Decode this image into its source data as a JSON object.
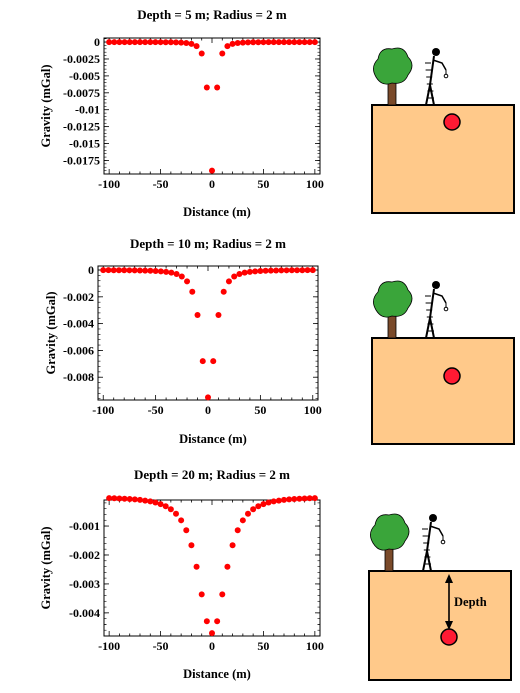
{
  "chart_data": [
    {
      "type": "scatter",
      "title": "Depth = 5 m; Radius = 2 m",
      "xlabel": "Distance (m)",
      "ylabel": "Gravity (mGal)",
      "xlim": [
        -105,
        105
      ],
      "ylim": [
        -0.0195,
        0.0006
      ],
      "xticks": [
        -100,
        -50,
        0,
        50,
        100
      ],
      "xtick_labels": [
        "-100",
        "-50",
        "0",
        "50",
        "100"
      ],
      "yticks": [
        0,
        -0.0025,
        -0.005,
        -0.0075,
        -0.01,
        -0.0125,
        -0.015,
        -0.0175
      ],
      "ytick_labels": [
        "0",
        "-0.0025",
        "-0.005",
        "-0.0075",
        "-0.01",
        "-0.0125",
        "-0.015",
        "-0.0175"
      ],
      "marker_color": "#ff0000",
      "depth": 5,
      "radius": 2,
      "series": [
        {
          "x": [],
          "y": []
        }
      ]
    },
    {
      "type": "scatter",
      "title": "Depth = 10 m; Radius = 2 m",
      "xlabel": "Distance (m)",
      "ylabel": "Gravity (mGal)",
      "xlim": [
        -105,
        105
      ],
      "ylim": [
        -0.0097,
        0.0003
      ],
      "xticks": [
        -100,
        -50,
        0,
        50,
        100
      ],
      "xtick_labels": [
        "-100",
        "-50",
        "0",
        "50",
        "100"
      ],
      "yticks": [
        0,
        -0.002,
        -0.004,
        -0.006,
        -0.008
      ],
      "ytick_labels": [
        "0",
        "-0.002",
        "-0.004",
        "-0.006",
        "-0.008"
      ],
      "marker_color": "#ff0000",
      "depth": 10,
      "radius": 2,
      "series": [
        {
          "x": [],
          "y": []
        }
      ]
    },
    {
      "type": "scatter",
      "title": "Depth = 20 m; Radius = 2 m",
      "xlabel": "Distance (m)",
      "ylabel": "Gravity (mGal)",
      "xlim": [
        -105,
        105
      ],
      "ylim": [
        -0.0048,
        -0.0001
      ],
      "xticks": [
        -100,
        -50,
        0,
        50,
        100
      ],
      "xtick_labels": [
        "-100",
        "-50",
        "0",
        "50",
        "100"
      ],
      "yticks": [
        -0.001,
        -0.002,
        -0.003,
        -0.004
      ],
      "ytick_labels": [
        "-0.001",
        "-0.002",
        "-0.003",
        "-0.004"
      ],
      "marker_color": "#ff0000",
      "depth": 20,
      "radius": 2,
      "series": [
        {
          "x": [],
          "y": []
        }
      ]
    }
  ],
  "diagram": {
    "depth_label": "Depth",
    "ground_color": "#ffc98a",
    "sphere_color": "#ff1a33",
    "tree_color": "#3aa53a",
    "trunk_color": "#7a4a2a"
  }
}
